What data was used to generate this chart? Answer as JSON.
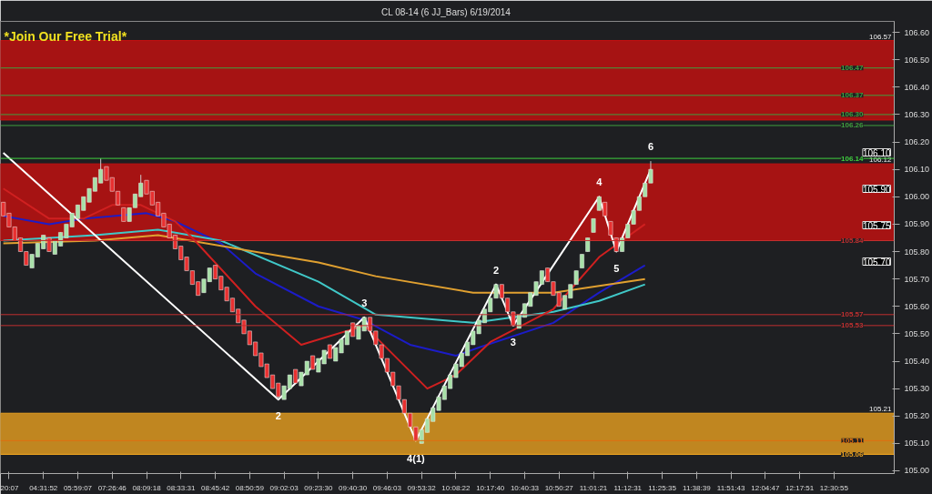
{
  "chart_data": {
    "type": "candlestick",
    "title": "CL 08-14 (6 JJ_Bars)  6/19/2014",
    "categories": [
      null,
      "20:07",
      null,
      null,
      null,
      null,
      null,
      "04:31:52",
      null,
      null,
      null,
      null,
      null,
      "05:59:07",
      null,
      null,
      null,
      null,
      null,
      "07:26:46",
      null,
      null,
      null,
      null,
      null,
      "08:09:18",
      null,
      null,
      null,
      null,
      null,
      "08:33:31",
      null,
      null,
      null,
      null,
      null,
      "08:45:42",
      null,
      null,
      null,
      null,
      null,
      "08:50:59",
      null,
      null,
      null,
      null,
      null,
      "09:02:03",
      null,
      null,
      null,
      null,
      null,
      "09:23:30",
      null,
      null,
      null,
      null,
      null,
      "09:40:30",
      null,
      null,
      null,
      null,
      null,
      "09:46:03",
      null,
      null,
      null,
      null,
      null,
      "09:53:32",
      null,
      null,
      null,
      null,
      null,
      "10:08:22",
      null,
      null,
      null,
      null,
      null,
      "10:17:40",
      null,
      null,
      null,
      null,
      null,
      "10:40:33",
      null,
      null,
      null,
      null,
      null,
      "10:50:27",
      null,
      null,
      null,
      null,
      null,
      "11:01:21",
      null,
      null,
      null,
      null,
      null,
      "11:12:31",
      null,
      null,
      null,
      null,
      null,
      "11:25:35",
      null,
      null,
      null,
      null,
      null,
      "11:38:39",
      null,
      null,
      null,
      null,
      null,
      "11:51:43",
      null,
      null,
      null,
      null,
      null,
      "12:04:47",
      null,
      null,
      null,
      null,
      null,
      "12:17:51",
      null,
      null,
      null,
      null,
      null,
      "12:30:55",
      null,
      null,
      null,
      null,
      null,
      null,
      null,
      null,
      null,
      null
    ],
    "ohlc": [
      [
        105.98,
        105.98,
        105.93,
        105.93
      ],
      [
        105.94,
        105.94,
        105.89,
        105.89
      ],
      [
        105.89,
        105.89,
        105.84,
        105.84
      ],
      [
        105.85,
        105.85,
        105.8,
        105.8
      ],
      [
        105.8,
        105.8,
        105.75,
        105.75
      ],
      [
        105.74,
        105.79,
        105.74,
        105.79
      ],
      [
        105.78,
        105.83,
        105.78,
        105.83
      ],
      [
        105.81,
        105.86,
        105.81,
        105.86
      ],
      [
        105.85,
        105.85,
        105.8,
        105.8
      ],
      [
        105.79,
        105.84,
        105.79,
        105.84
      ],
      [
        105.82,
        105.87,
        105.82,
        105.87
      ],
      [
        105.85,
        105.9,
        105.85,
        105.9
      ],
      [
        105.89,
        105.94,
        105.89,
        105.94
      ],
      [
        105.92,
        105.97,
        105.92,
        105.97
      ],
      [
        105.95,
        106.0,
        105.95,
        106.0
      ],
      [
        105.98,
        106.03,
        105.98,
        106.03
      ],
      [
        106.02,
        106.07,
        106.02,
        106.07
      ],
      [
        106.05,
        106.14,
        106.05,
        106.1
      ],
      [
        106.11,
        106.11,
        106.06,
        106.06
      ],
      [
        106.07,
        106.07,
        106.02,
        106.02
      ],
      [
        106.02,
        106.02,
        105.97,
        105.97
      ],
      [
        105.96,
        105.96,
        105.91,
        105.91
      ],
      [
        105.91,
        105.96,
        105.91,
        105.96
      ],
      [
        105.96,
        106.01,
        105.96,
        106.01
      ],
      [
        106.0,
        106.08,
        106.0,
        106.05
      ],
      [
        106.06,
        106.06,
        106.01,
        106.01
      ],
      [
        106.02,
        106.02,
        105.97,
        105.97
      ],
      [
        105.98,
        105.98,
        105.93,
        105.93
      ],
      [
        105.94,
        105.94,
        105.89,
        105.89
      ],
      [
        105.9,
        105.9,
        105.85,
        105.85
      ],
      [
        105.86,
        105.86,
        105.81,
        105.81
      ],
      [
        105.82,
        105.82,
        105.77,
        105.77
      ],
      [
        105.78,
        105.78,
        105.73,
        105.73
      ],
      [
        105.73,
        105.73,
        105.68,
        105.68
      ],
      [
        105.69,
        105.69,
        105.64,
        105.64
      ],
      [
        105.65,
        105.7,
        105.65,
        105.7
      ],
      [
        105.69,
        105.74,
        105.69,
        105.74
      ],
      [
        105.75,
        105.75,
        105.7,
        105.7
      ],
      [
        105.71,
        105.71,
        105.66,
        105.66
      ],
      [
        105.67,
        105.67,
        105.62,
        105.62
      ],
      [
        105.63,
        105.63,
        105.58,
        105.58
      ],
      [
        105.59,
        105.59,
        105.54,
        105.54
      ],
      [
        105.55,
        105.55,
        105.5,
        105.5
      ],
      [
        105.51,
        105.51,
        105.46,
        105.46
      ],
      [
        105.47,
        105.47,
        105.42,
        105.42
      ],
      [
        105.43,
        105.43,
        105.38,
        105.38
      ],
      [
        105.39,
        105.39,
        105.34,
        105.34
      ],
      [
        105.35,
        105.35,
        105.3,
        105.3
      ],
      [
        105.32,
        105.32,
        105.26,
        105.27
      ],
      [
        105.26,
        105.31,
        105.26,
        105.31
      ],
      [
        105.3,
        105.35,
        105.3,
        105.35
      ],
      [
        105.37,
        105.37,
        105.32,
        105.32
      ],
      [
        105.31,
        105.36,
        105.31,
        105.36
      ],
      [
        105.35,
        105.4,
        105.35,
        105.4
      ],
      [
        105.42,
        105.42,
        105.37,
        105.37
      ],
      [
        105.36,
        105.41,
        105.36,
        105.41
      ],
      [
        105.39,
        105.44,
        105.39,
        105.44
      ],
      [
        105.46,
        105.46,
        105.41,
        105.41
      ],
      [
        105.4,
        105.45,
        105.4,
        105.45
      ],
      [
        105.43,
        105.48,
        105.43,
        105.48
      ],
      [
        105.46,
        105.51,
        105.46,
        105.51
      ],
      [
        105.54,
        105.54,
        105.49,
        105.49
      ],
      [
        105.48,
        105.53,
        105.48,
        105.53
      ],
      [
        105.51,
        105.56,
        105.51,
        105.56
      ],
      [
        105.56,
        105.56,
        105.51,
        105.51
      ],
      [
        105.51,
        105.51,
        105.46,
        105.46
      ],
      [
        105.46,
        105.46,
        105.41,
        105.41
      ],
      [
        105.41,
        105.41,
        105.36,
        105.36
      ],
      [
        105.36,
        105.36,
        105.31,
        105.31
      ],
      [
        105.31,
        105.31,
        105.26,
        105.26
      ],
      [
        105.26,
        105.26,
        105.21,
        105.21
      ],
      [
        105.21,
        105.21,
        105.16,
        105.16
      ],
      [
        105.16,
        105.16,
        105.11,
        105.11
      ],
      [
        105.1,
        105.15,
        105.1,
        105.15
      ],
      [
        105.14,
        105.19,
        105.14,
        105.19
      ],
      [
        105.18,
        105.23,
        105.18,
        105.23
      ],
      [
        105.22,
        105.27,
        105.22,
        105.27
      ],
      [
        105.26,
        105.31,
        105.26,
        105.31
      ],
      [
        105.3,
        105.35,
        105.3,
        105.35
      ],
      [
        105.34,
        105.39,
        105.34,
        105.39
      ],
      [
        105.38,
        105.43,
        105.38,
        105.43
      ],
      [
        105.42,
        105.47,
        105.42,
        105.47
      ],
      [
        105.46,
        105.51,
        105.46,
        105.51
      ],
      [
        105.5,
        105.55,
        105.5,
        105.55
      ],
      [
        105.54,
        105.59,
        105.54,
        105.59
      ],
      [
        105.58,
        105.63,
        105.58,
        105.63
      ],
      [
        105.63,
        105.68,
        105.63,
        105.68
      ],
      [
        105.68,
        105.68,
        105.63,
        105.63
      ],
      [
        105.63,
        105.63,
        105.58,
        105.58
      ],
      [
        105.58,
        105.58,
        105.53,
        105.53
      ],
      [
        105.52,
        105.57,
        105.52,
        105.57
      ],
      [
        105.56,
        105.61,
        105.56,
        105.61
      ],
      [
        105.6,
        105.65,
        105.6,
        105.65
      ],
      [
        105.64,
        105.69,
        105.64,
        105.69
      ],
      [
        105.68,
        105.73,
        105.68,
        105.73
      ],
      [
        105.74,
        105.74,
        105.69,
        105.69
      ],
      [
        105.69,
        105.69,
        105.64,
        105.64
      ],
      [
        105.65,
        105.65,
        105.6,
        105.6
      ],
      [
        105.59,
        105.64,
        105.59,
        105.64
      ],
      [
        105.63,
        105.68,
        105.63,
        105.68
      ],
      [
        105.68,
        105.73,
        105.68,
        105.73
      ],
      [
        105.74,
        105.79,
        105.74,
        105.79
      ],
      [
        105.8,
        105.85,
        105.8,
        105.85
      ],
      [
        105.87,
        105.92,
        105.87,
        105.92
      ],
      [
        105.95,
        106.0,
        105.95,
        106.0
      ],
      [
        105.98,
        105.98,
        105.93,
        105.93
      ],
      [
        105.91,
        105.91,
        105.86,
        105.86
      ],
      [
        105.85,
        105.85,
        105.8,
        105.8
      ],
      [
        105.8,
        105.85,
        105.8,
        105.85
      ],
      [
        105.85,
        105.9,
        105.85,
        105.9
      ],
      [
        105.9,
        105.95,
        105.9,
        105.95
      ],
      [
        105.95,
        106.0,
        105.95,
        106.0
      ],
      [
        106.0,
        106.05,
        106.0,
        106.05
      ],
      [
        106.05,
        106.13,
        106.05,
        106.1
      ],
      null,
      null,
      null,
      null,
      null,
      null,
      null,
      null,
      null,
      null,
      null,
      null,
      null,
      null,
      null,
      null,
      null,
      null,
      null,
      null,
      null,
      null,
      null,
      null,
      null,
      null,
      null,
      null,
      null,
      null,
      null,
      null,
      null,
      null,
      null,
      null,
      null,
      null,
      null,
      null,
      null,
      null
    ],
    "series": [
      {
        "type": "line",
        "color": "#1c1cc8",
        "values": [
          105.93,
          null,
          null,
          null,
          null,
          null,
          null,
          null,
          105.9,
          null,
          null,
          null,
          null,
          null,
          105.92,
          null,
          null,
          null,
          null,
          null,
          null,
          null,
          null,
          null,
          null,
          105.94,
          null,
          null,
          null,
          null,
          105.91,
          null,
          null,
          null,
          null,
          null,
          null,
          null,
          105.83,
          null,
          null,
          null,
          null,
          null,
          105.72,
          null,
          null,
          null,
          null,
          null,
          null,
          null,
          null,
          null,
          null,
          105.6,
          null,
          null,
          null,
          null,
          null,
          null,
          null,
          105.55,
          null,
          null,
          null,
          null,
          null,
          null,
          null,
          105.46,
          null,
          null,
          null,
          null,
          null,
          null,
          null,
          105.42,
          null,
          null,
          null,
          105.45,
          null,
          null,
          null,
          null,
          null,
          null,
          null,
          null,
          null,
          null,
          null,
          null,
          105.54,
          null,
          null,
          null,
          null,
          null,
          null,
          null,
          105.65,
          null,
          null,
          null,
          null,
          null,
          null,
          null,
          105.75,
          null,
          null,
          null,
          null,
          null,
          null,
          null,
          null,
          null,
          null,
          null,
          null,
          null,
          null,
          null,
          null,
          null,
          null,
          null,
          null,
          null,
          null,
          null,
          null,
          null,
          null,
          null,
          null,
          null,
          null,
          null,
          null,
          null,
          null,
          null,
          null,
          null,
          null,
          null,
          null,
          null,
          null,
          null
        ]
      },
      {
        "type": "line",
        "color": "#40c8c8",
        "values": [
          105.84,
          null,
          null,
          null,
          null,
          null,
          null,
          null,
          null,
          null,
          null,
          null,
          null,
          null,
          null,
          null,
          105.86,
          null,
          null,
          null,
          null,
          null,
          null,
          null,
          null,
          null,
          null,
          105.88,
          null,
          null,
          null,
          null,
          null,
          null,
          null,
          null,
          null,
          null,
          105.84,
          null,
          null,
          null,
          null,
          null,
          null,
          null,
          null,
          null,
          null,
          null,
          null,
          null,
          null,
          null,
          null,
          105.69,
          null,
          null,
          null,
          null,
          null,
          null,
          null,
          null,
          null,
          105.57,
          null,
          null,
          null,
          null,
          null,
          null,
          null,
          null,
          null,
          null,
          null,
          null,
          null,
          null,
          null,
          null,
          105.54,
          null,
          null,
          null,
          null,
          null,
          null,
          null,
          null,
          null,
          null,
          null,
          null,
          null,
          105.58,
          null,
          null,
          null,
          null,
          null,
          null,
          null,
          105.62,
          null,
          null,
          null,
          null,
          null,
          null,
          null,
          105.68,
          null,
          null,
          null,
          null,
          null,
          null,
          null,
          null,
          null,
          null,
          null,
          null,
          null,
          null,
          null,
          null,
          null,
          null,
          null,
          null,
          null,
          null,
          null,
          null,
          null,
          null,
          null,
          null,
          null,
          null,
          null,
          null,
          null,
          null,
          null,
          null,
          null,
          null,
          null,
          null,
          null,
          null,
          null
        ]
      },
      {
        "type": "line",
        "color": "#e0a030",
        "values": [
          105.83,
          null,
          null,
          null,
          null,
          null,
          null,
          null,
          null,
          null,
          null,
          null,
          null,
          null,
          null,
          null,
          105.84,
          null,
          null,
          null,
          null,
          null,
          null,
          null,
          null,
          null,
          null,
          105.86,
          null,
          null,
          null,
          null,
          null,
          null,
          null,
          null,
          null,
          null,
          null,
          null,
          null,
          null,
          null,
          null,
          null,
          null,
          null,
          null,
          null,
          null,
          null,
          null,
          null,
          null,
          null,
          105.76,
          null,
          null,
          null,
          null,
          null,
          null,
          null,
          null,
          null,
          105.71,
          null,
          null,
          null,
          null,
          null,
          null,
          null,
          null,
          null,
          null,
          null,
          null,
          null,
          null,
          null,
          null,
          105.65,
          null,
          null,
          null,
          null,
          null,
          null,
          null,
          null,
          null,
          null,
          null,
          null,
          null,
          105.65,
          null,
          null,
          null,
          null,
          null,
          null,
          null,
          null,
          null,
          null,
          null,
          null,
          null,
          null,
          null,
          105.7,
          null,
          null,
          null,
          null,
          null,
          null,
          null,
          null,
          null,
          null,
          null,
          null,
          null,
          null,
          null,
          null,
          null,
          null,
          null,
          null,
          null,
          null,
          null,
          null,
          null,
          null,
          null,
          null,
          null,
          null,
          null,
          null,
          null,
          null,
          null,
          null,
          null,
          null,
          null,
          null,
          null,
          null,
          null
        ]
      },
      {
        "type": "line",
        "color": "#d02020",
        "values": [
          106.03,
          null,
          null,
          null,
          null,
          null,
          null,
          null,
          105.92,
          null,
          null,
          null,
          null,
          null,
          105.92,
          null,
          null,
          null,
          null,
          105.97,
          null,
          null,
          null,
          null,
          105.97,
          null,
          null,
          null,
          null,
          null,
          105.91,
          null,
          null,
          105.85,
          null,
          null,
          null,
          null,
          null,
          null,
          null,
          null,
          null,
          null,
          105.6,
          null,
          null,
          null,
          null,
          null,
          null,
          null,
          105.46,
          null,
          null,
          null,
          null,
          null,
          null,
          null,
          null,
          null,
          null,
          105.53,
          null,
          null,
          null,
          null,
          null,
          null,
          null,
          null,
          null,
          null,
          105.3,
          null,
          null,
          null,
          null,
          105.35,
          null,
          null,
          null,
          null,
          null,
          105.47,
          null,
          null,
          null,
          null,
          null,
          null,
          null,
          null,
          null,
          null,
          105.59,
          null,
          null,
          null,
          null,
          null,
          null,
          null,
          105.78,
          null,
          null,
          null,
          null,
          null,
          null,
          null,
          105.9,
          null,
          null,
          null,
          null,
          null,
          null,
          null,
          null,
          null,
          null,
          null,
          null,
          null,
          null,
          null,
          null,
          null,
          null,
          null,
          null,
          null,
          null,
          null,
          null,
          null,
          null,
          null,
          null,
          null,
          null,
          null,
          null,
          null,
          null,
          null,
          null,
          null,
          null,
          null,
          null,
          null,
          null,
          null
        ]
      },
      {
        "type": "line",
        "color": "#ffffff",
        "values": [
          106.16,
          null,
          null,
          null,
          null,
          null,
          null,
          null,
          null,
          null,
          null,
          null,
          null,
          null,
          null,
          null,
          null,
          null,
          null,
          null,
          null,
          null,
          null,
          null,
          null,
          null,
          null,
          null,
          null,
          null,
          null,
          null,
          null,
          null,
          null,
          null,
          null,
          null,
          null,
          null,
          null,
          null,
          null,
          null,
          null,
          null,
          null,
          null,
          105.26,
          null,
          null,
          null,
          null,
          null,
          null,
          null,
          null,
          null,
          null,
          null,
          null,
          null,
          null,
          105.56,
          null,
          null,
          null,
          null,
          null,
          null,
          null,
          null,
          105.11,
          null,
          null,
          null,
          null,
          null,
          null,
          null,
          null,
          null,
          null,
          null,
          null,
          null,
          105.68,
          null,
          null,
          105.53,
          null,
          null,
          null,
          null,
          null,
          null,
          null,
          null,
          null,
          null,
          null,
          null,
          null,
          null,
          106.0,
          null,
          null,
          105.8,
          null,
          null,
          null,
          null,
          null,
          106.1,
          null,
          null,
          null,
          null,
          null,
          null,
          null,
          null,
          null,
          null,
          null,
          null,
          null,
          null,
          null,
          null,
          null,
          null,
          null,
          null,
          null,
          null,
          null,
          null,
          null,
          null,
          null,
          null,
          null,
          null,
          null,
          null,
          null,
          null,
          null,
          null,
          null,
          null,
          null,
          null,
          null,
          null
        ]
      }
    ],
    "ylim": [
      104.99,
      106.64
    ],
    "yticks": [
      {
        "value": 105.0,
        "label": "105.00"
      },
      {
        "value": 105.1,
        "label": "105.10"
      },
      {
        "value": 105.2,
        "label": "105.20"
      },
      {
        "value": 105.3,
        "label": "105.30"
      },
      {
        "value": 105.4,
        "label": "105.40"
      },
      {
        "value": 105.5,
        "label": "105.50"
      },
      {
        "value": 105.6,
        "label": "105.60"
      },
      {
        "value": 105.7,
        "label": "105.70"
      },
      {
        "value": 105.8,
        "label": "105.80"
      },
      {
        "value": 105.9,
        "label": "105.90"
      },
      {
        "value": 106.0,
        "label": "106.00"
      },
      {
        "value": 106.1,
        "label": "106.10"
      },
      {
        "value": 106.2,
        "label": "106.20"
      },
      {
        "value": 106.3,
        "label": "106.30"
      },
      {
        "value": 106.4,
        "label": "106.40"
      },
      {
        "value": 106.5,
        "label": "106.50"
      },
      {
        "value": 106.6,
        "label": "106.60"
      }
    ],
    "bands": [
      {
        "axis": "y",
        "from": 106.28,
        "to": 106.57,
        "label": "106.57",
        "color": "#c81010"
      },
      {
        "axis": "y",
        "from": 105.84,
        "to": 106.12,
        "label": "106.12",
        "color": "#c81010"
      },
      {
        "axis": "y",
        "from": 105.06,
        "to": 105.21,
        "label": "105.21",
        "color": "#e8a020"
      }
    ],
    "ref_lines": [
      {
        "axis": "y",
        "value": 106.47,
        "label": "106.47",
        "color": "#3fa03f"
      },
      {
        "axis": "y",
        "value": 106.37,
        "label": "106.37",
        "color": "#3fa03f"
      },
      {
        "axis": "y",
        "value": 106.3,
        "label": "106.30",
        "color": "#3fa03f"
      },
      {
        "axis": "y",
        "value": 106.26,
        "label": "106.26",
        "color": "#3fa03f"
      },
      {
        "axis": "y",
        "value": 106.14,
        "label": "106.14",
        "color": "#3fd03f"
      },
      {
        "axis": "y",
        "value": 105.84,
        "label": "105.84",
        "color": "#c03030"
      },
      {
        "axis": "y",
        "value": 105.57,
        "label": "105.57",
        "color": "#c03030"
      },
      {
        "axis": "y",
        "value": 105.53,
        "label": "105.53",
        "color": "#c03030"
      },
      {
        "axis": "y",
        "value": 105.11,
        "label": "105.11",
        "color": "#e07010"
      },
      {
        "axis": "y",
        "value": 105.06,
        "label": "105.06",
        "color": "#e8a020"
      }
    ],
    "annotations": [
      "*Join Our Free Trial*",
      {
        "text": "2",
        "y": 105.26
      },
      {
        "text": "3",
        "y": 105.56
      },
      {
        "text": "4(1)",
        "y": 105.11
      },
      {
        "text": "2",
        "y": 105.68
      },
      {
        "text": "3",
        "y": 105.53
      },
      {
        "text": "4",
        "y": 106.0
      },
      {
        "text": "5",
        "y": 105.8
      },
      {
        "text": "6",
        "y": 106.13
      },
      "106.10",
      "105.90",
      "105.75",
      "105.70"
    ]
  }
}
